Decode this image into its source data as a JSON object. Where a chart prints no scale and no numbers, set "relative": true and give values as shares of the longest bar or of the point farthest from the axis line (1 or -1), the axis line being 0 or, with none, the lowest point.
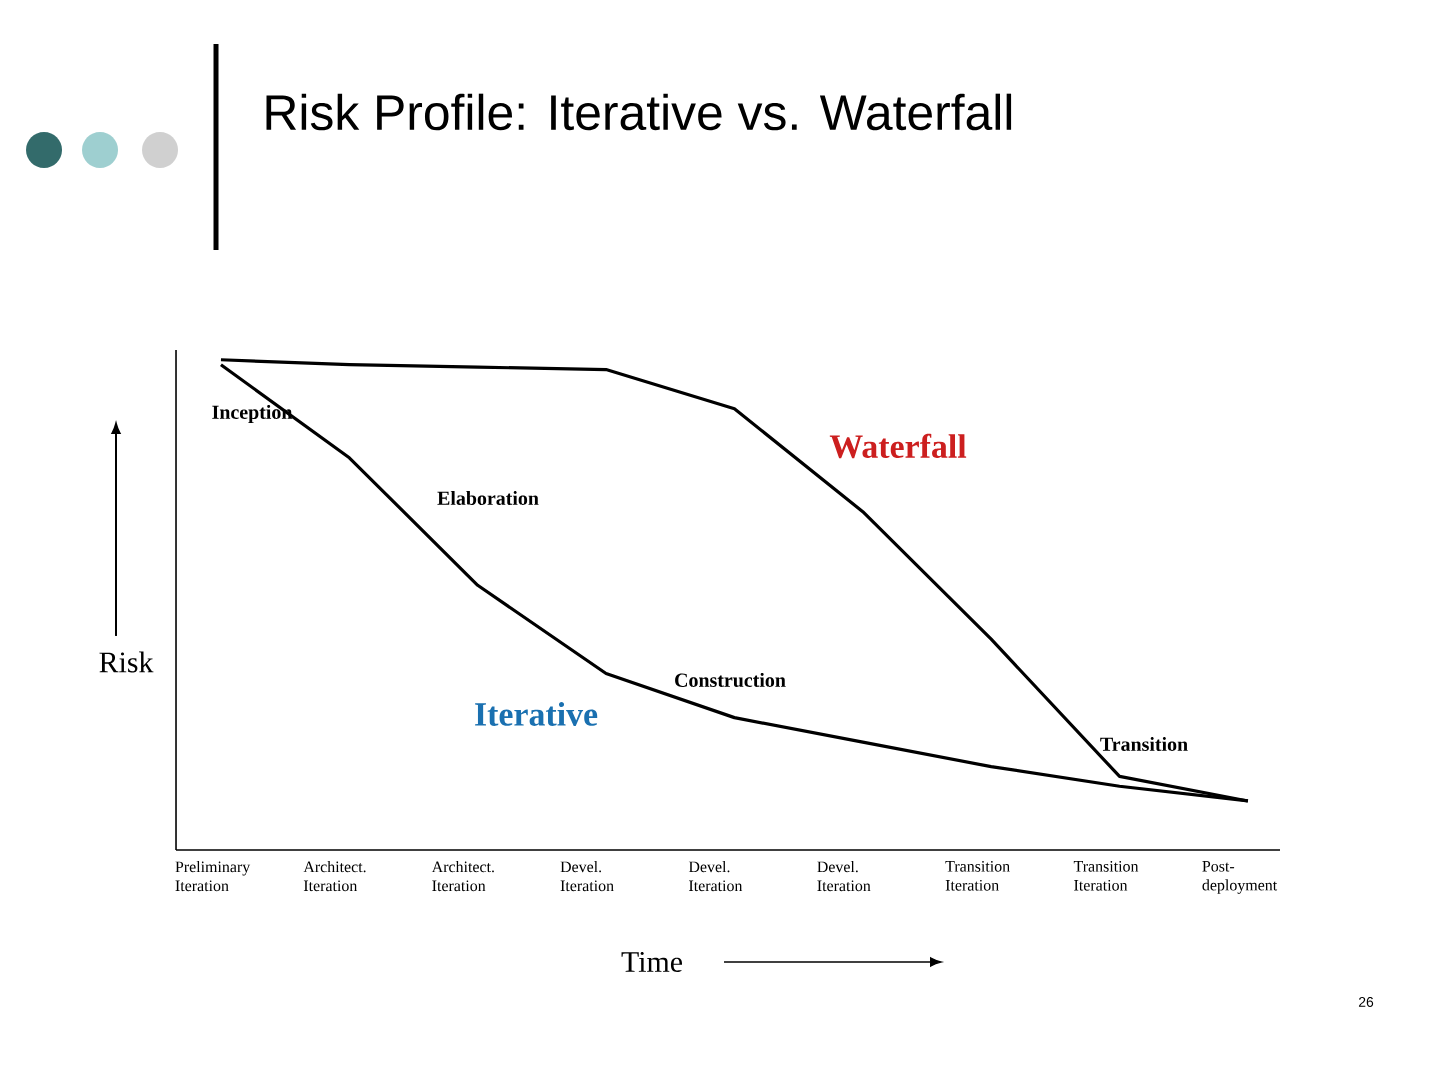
{
  "chart_data": {
    "type": "line",
    "title": "Risk Profile:  Iterative vs. Waterfall",
    "xlabel": "Time",
    "ylabel": "Risk",
    "relative": true,
    "categories": [
      "Preliminary Iteration",
      "Architect. Iteration",
      "Architect. Iteration",
      "Devel. Iteration",
      "Devel. Iteration",
      "Devel. Iteration",
      "Transition Iteration",
      "Transition Iteration",
      "Post-deployment"
    ],
    "series": [
      {
        "name": "Waterfall",
        "color": "#000000",
        "values": [
          1.0,
          0.99,
          0.985,
          0.98,
          0.9,
          0.69,
          0.43,
          0.15,
          0.1
        ]
      },
      {
        "name": "Iterative",
        "color": "#000000",
        "values": [
          0.99,
          0.8,
          0.54,
          0.36,
          0.27,
          0.22,
          0.17,
          0.13,
          0.1
        ]
      }
    ],
    "annotations": [
      "Inception",
      "Elaboration",
      "Construction",
      "Transition",
      "26"
    ]
  }
}
